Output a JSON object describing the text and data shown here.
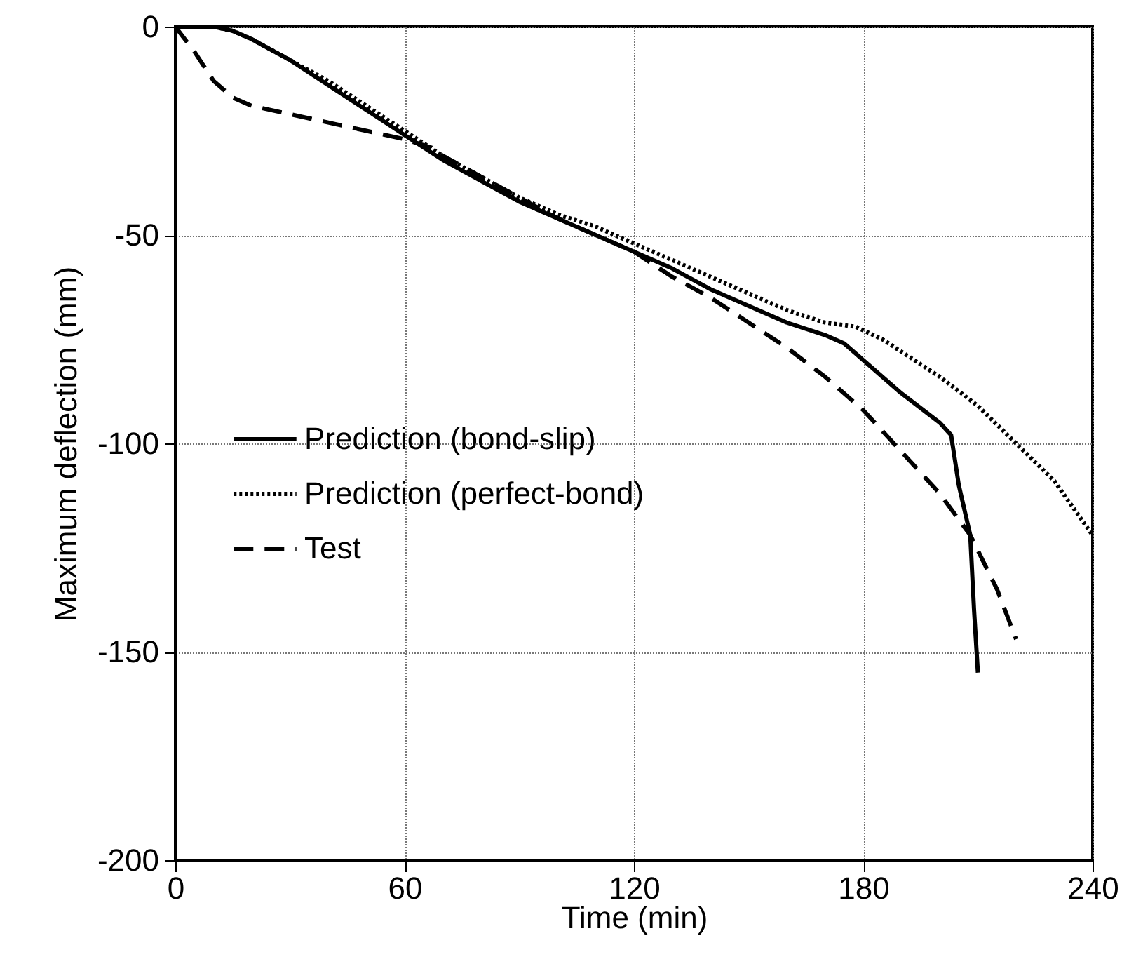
{
  "chart_data": {
    "type": "line",
    "xlabel": "Time (min)",
    "ylabel": "Maximum deflection (mm)",
    "xlim": [
      0,
      240
    ],
    "xticks": [
      0,
      60,
      120,
      180,
      240
    ],
    "ylim": [
      -200,
      0
    ],
    "yticks": [
      -200,
      -150,
      -100,
      -50,
      0
    ],
    "grid": true,
    "legend": "left",
    "marker": "none",
    "series": [
      {
        "name": "Prediction (bond-slip)",
        "color": "#000000",
        "line_style": "solid",
        "x": [
          0,
          10,
          15,
          20,
          30,
          40,
          50,
          60,
          70,
          80,
          90,
          100,
          110,
          120,
          130,
          140,
          150,
          160,
          170,
          175,
          180,
          190,
          200,
          203,
          205,
          208,
          209,
          210
        ],
        "values": [
          0,
          0,
          -1,
          -3,
          -8,
          -14,
          -20,
          -26,
          -32,
          -37,
          -42,
          -46,
          -50,
          -54,
          -58,
          -63,
          -67,
          -71,
          -74,
          -76,
          -80,
          -88,
          -95,
          -98,
          -110,
          -122,
          -140,
          -155
        ]
      },
      {
        "name": "Prediction (perfect-bond)",
        "color": "#000000",
        "line_style": "dotted",
        "x": [
          0,
          10,
          15,
          20,
          30,
          40,
          50,
          60,
          70,
          80,
          90,
          100,
          110,
          120,
          130,
          140,
          150,
          160,
          170,
          178,
          185,
          190,
          200,
          210,
          220,
          230,
          240
        ],
        "values": [
          0,
          0,
          -1,
          -3,
          -8,
          -13,
          -19,
          -25,
          -31,
          -36,
          -41,
          -45,
          -48,
          -52,
          -56,
          -60,
          -64,
          -68,
          -71,
          -72,
          -75,
          -78,
          -84,
          -91,
          -100,
          -109,
          -122
        ]
      },
      {
        "name": "Test",
        "color": "#000000",
        "line_style": "dashed",
        "x": [
          0,
          5,
          10,
          15,
          20,
          30,
          40,
          50,
          60,
          67,
          70,
          80,
          90,
          100,
          110,
          120,
          130,
          140,
          150,
          160,
          170,
          180,
          190,
          200,
          208,
          215,
          220
        ],
        "values": [
          0,
          -6,
          -13,
          -17,
          -19,
          -21,
          -23,
          -25,
          -27,
          -29,
          -31,
          -36,
          -41,
          -46,
          -50,
          -54,
          -60,
          -65,
          -71,
          -77,
          -84,
          -92,
          -102,
          -112,
          -122,
          -135,
          -147
        ]
      }
    ]
  }
}
